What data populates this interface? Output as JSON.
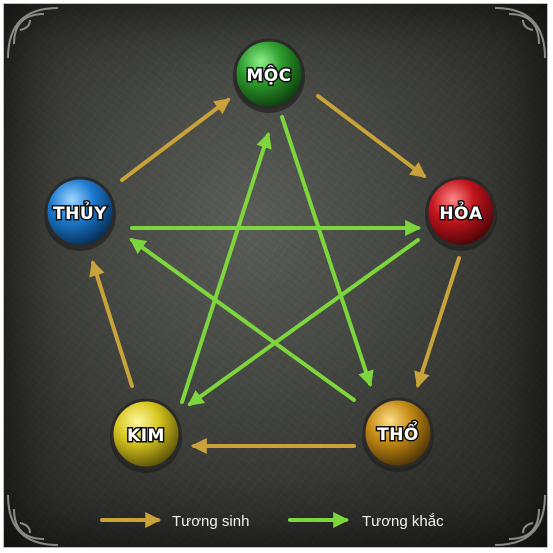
{
  "colors": {
    "sinh_arrow": "#c9a23a",
    "khac_arrow": "#7ed63d",
    "moc": "#2c9a2c",
    "hoa": "#c4141c",
    "tho": "#c48a14",
    "kim": "#d7c61e",
    "thuy": "#1c7ad0"
  },
  "nodes": {
    "moc": {
      "label": "MỘC"
    },
    "hoa": {
      "label": "HỎA"
    },
    "tho": {
      "label": "THỔ"
    },
    "kim": {
      "label": "KIM"
    },
    "thuy": {
      "label": "THỦY"
    }
  },
  "legend": {
    "sinh_label": "Tương sinh",
    "khac_label": "Tương khắc"
  }
}
